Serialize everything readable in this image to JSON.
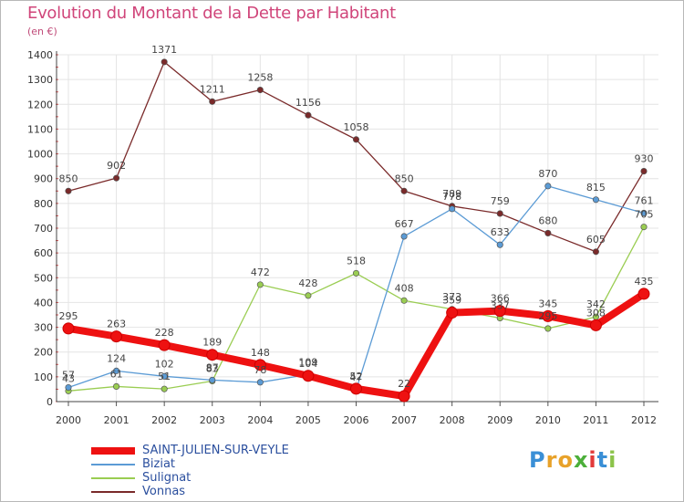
{
  "title": "Evolution du Montant de la Dette par Habitant",
  "subtitle": "(en €)",
  "logo": {
    "letters": [
      "P",
      "r",
      "o",
      "x",
      "i",
      "t",
      "i"
    ],
    "colors": [
      "#3a8fd6",
      "#e8a22a",
      "#e8a22a",
      "#4caf3a",
      "#e23a3a",
      "#3a8fd6",
      "#8bc34a"
    ]
  },
  "chart_data": {
    "type": "line",
    "x": [
      "2000",
      "2001",
      "2002",
      "2003",
      "2004",
      "2005",
      "2006",
      "2007",
      "2008",
      "2009",
      "2010",
      "2011",
      "2012"
    ],
    "ylim": [
      0,
      1400
    ],
    "yticks": [
      0,
      100,
      200,
      300,
      400,
      500,
      600,
      700,
      800,
      900,
      1000,
      1100,
      1200,
      1300,
      1400
    ],
    "grid": true,
    "legend": "bottom-left",
    "series": [
      {
        "name": "SAINT-JULIEN-SUR-VEYLE",
        "color": "#ee1111",
        "values": [
          295,
          263,
          228,
          189,
          148,
          104,
          52,
          22,
          359,
          366,
          345,
          308,
          435
        ],
        "labels": [
          "295",
          "263",
          "228",
          "189",
          "148",
          "104",
          "52",
          "22",
          "359",
          "366",
          "345",
          "308",
          "435"
        ]
      },
      {
        "name": "Biziat",
        "color": "#5b9bd5",
        "values": [
          57,
          124,
          102,
          87,
          78,
          109,
          47,
          667,
          778,
          633,
          870,
          815,
          761
        ],
        "labels": [
          "57",
          "124",
          "102",
          "87",
          "78",
          "109",
          "47",
          "667",
          "778",
          "633",
          "870",
          "815",
          "761"
        ]
      },
      {
        "name": "Sulignat",
        "color": "#9acd52",
        "values": [
          43,
          61,
          51,
          83,
          472,
          428,
          518,
          408,
          373,
          337,
          295,
          342,
          705
        ],
        "labels": [
          "43",
          "61",
          "51",
          "83",
          "472",
          "428",
          "518",
          "408",
          "373",
          "337",
          "295",
          "342",
          "705"
        ]
      },
      {
        "name": "Vonnas",
        "color": "#7a2a2a",
        "values": [
          850,
          902,
          1371,
          1211,
          1258,
          1156,
          1058,
          850,
          789,
          759,
          680,
          605,
          930
        ],
        "labels": [
          "850",
          "902",
          "1371",
          "1211",
          "1258",
          "1156",
          "1058",
          "850",
          "789",
          "759",
          "680",
          "605",
          "930"
        ]
      }
    ]
  }
}
